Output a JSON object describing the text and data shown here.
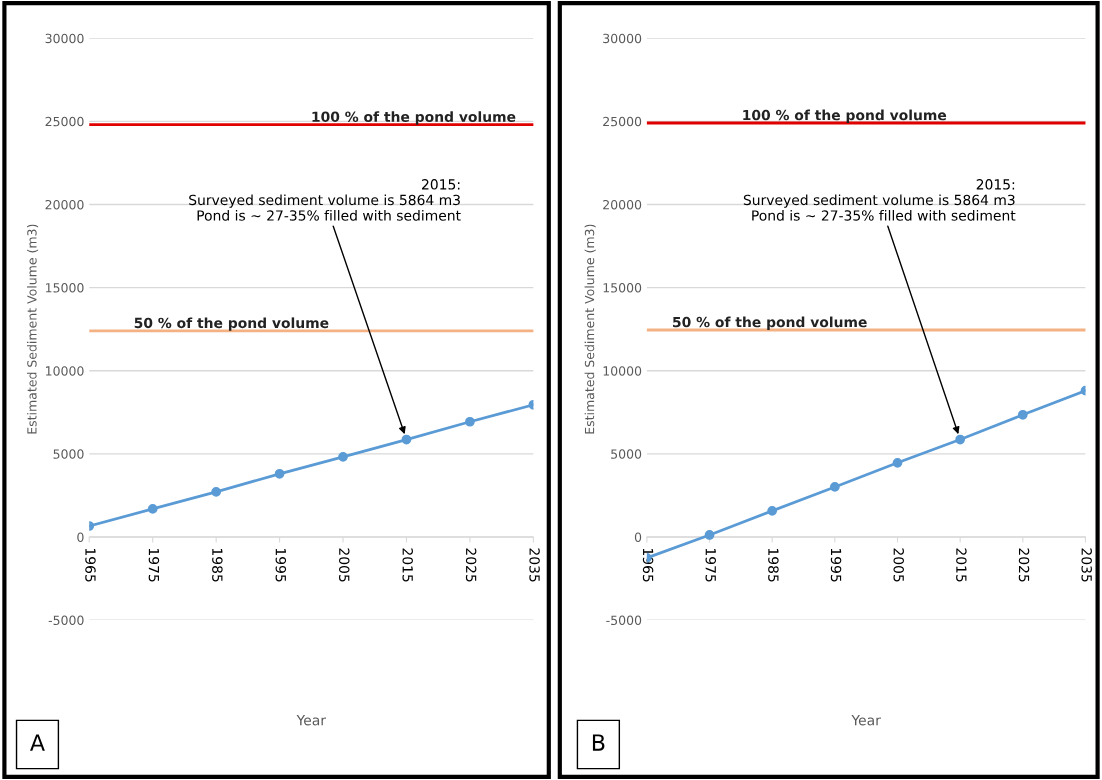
{
  "chart_data": [
    {
      "type": "line",
      "xlabel": "Year",
      "ylabel": "Estimated Sediment Volume (m3)",
      "categories": [
        "1965",
        "1975",
        "1985",
        "1995",
        "2005",
        "2015",
        "2025",
        "2035"
      ],
      "series": [
        {
          "color": "#5b9bd5",
          "values": [
            660,
            1690,
            2710,
            3800,
            4820,
            5860,
            6930,
            7950
          ]
        }
      ],
      "ylim": [
        -5000,
        30000
      ],
      "yticks": [
        -5000,
        0,
        5000,
        10000,
        15000,
        20000,
        25000,
        30000
      ],
      "grid": "y",
      "marker": "circle",
      "line_style": "solid",
      "ref_lines": [
        {
          "axis": "y",
          "value": 24800,
          "label": "100 % of the pond volume",
          "color": "#e00000"
        },
        {
          "axis": "y",
          "value": 12400,
          "label": "50 % of the pond volume",
          "color": "#f4b183"
        }
      ],
      "annotations": [
        {
          "text": "2015:\nSurveyed sediment volume is 5864 m3\nPond is ~ 27-35% filled with sediment",
          "x": "2015",
          "y": 5864
        },
        "A"
      ]
    },
    {
      "type": "line",
      "xlabel": "Year",
      "ylabel": "Estimated Sediment Volume (m3)",
      "categories": [
        "1965",
        "1975",
        "1985",
        "1995",
        "2005",
        "2015",
        "2025",
        "2035"
      ],
      "series": [
        {
          "color": "#5b9bd5",
          "values": [
            -1260,
            120,
            1570,
            3010,
            4460,
            5860,
            7350,
            8800
          ]
        }
      ],
      "ylim": [
        -5000,
        30000
      ],
      "yticks": [
        -5000,
        0,
        5000,
        10000,
        15000,
        20000,
        25000,
        30000
      ],
      "grid": "y",
      "marker": "circle",
      "line_style": "solid",
      "ref_lines": [
        {
          "axis": "y",
          "value": 24900,
          "label": "100 % of the pond volume",
          "color": "#e00000"
        },
        {
          "axis": "y",
          "value": 12450,
          "label": "50 % of the pond volume",
          "color": "#f4b183"
        }
      ],
      "annotations": [
        {
          "text": "2015:\nSurveyed sediment volume is 5864 m3\nPond is ~ 27-35% filled with sediment",
          "x": "2015",
          "y": 5864
        },
        "B"
      ]
    }
  ]
}
